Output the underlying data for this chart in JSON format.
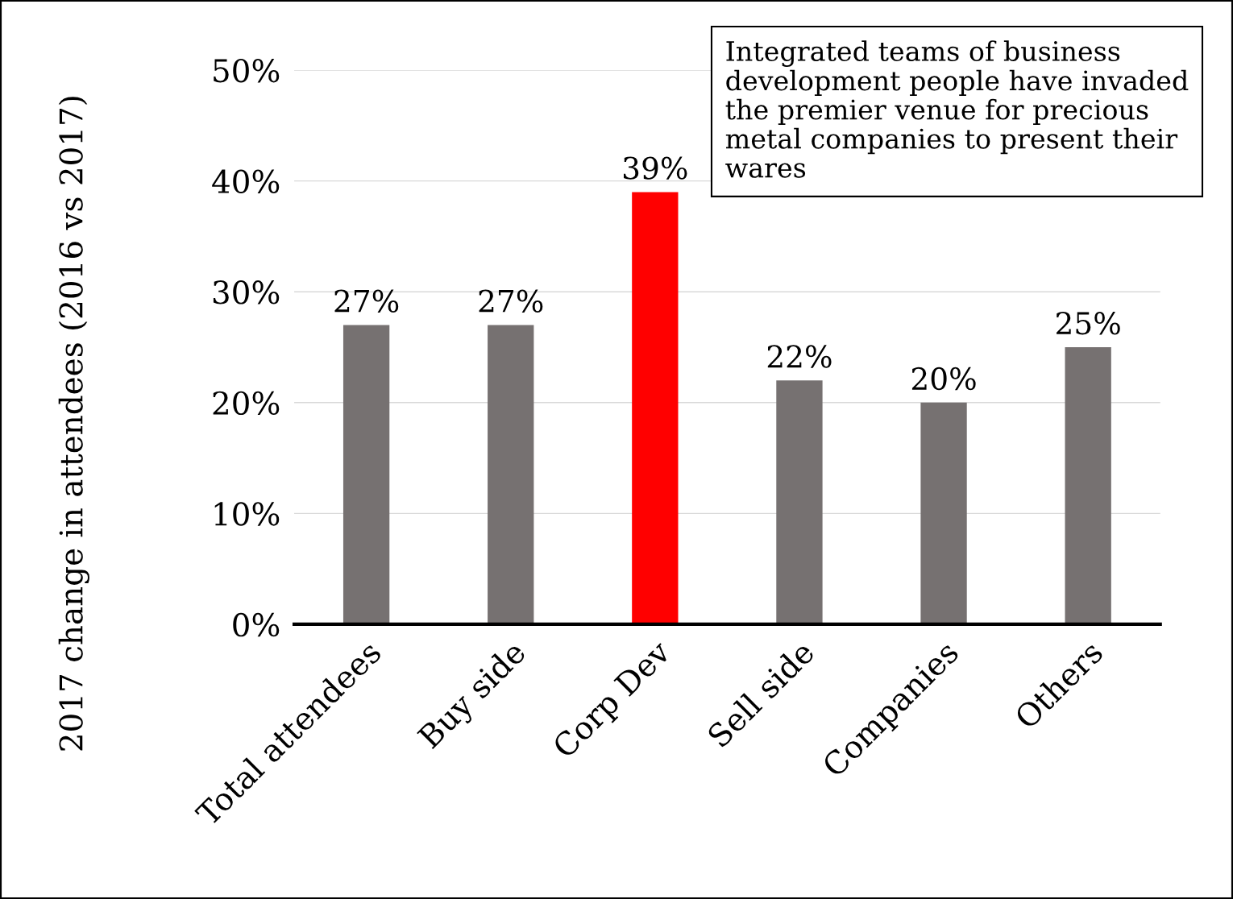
{
  "chart_data": {
    "type": "bar",
    "ylabel": "2017 change in attendees (2016 vs 2017)",
    "categories": [
      "Total attendees",
      "Buy side",
      "Corp Dev",
      "Sell side",
      "Companies",
      "Others"
    ],
    "values": [
      27,
      27,
      39,
      22,
      20,
      25
    ],
    "colors": [
      "#767171",
      "#767171",
      "#ff0000",
      "#767171",
      "#767171",
      "#767171"
    ],
    "data_labels": true,
    "value_labels": [
      "27%",
      "27%",
      "39%",
      "22%",
      "20%",
      "25%"
    ],
    "ylim": [
      0,
      50
    ],
    "yticks": [
      {
        "value": 0,
        "label": "0%"
      },
      {
        "value": 10,
        "label": "10%"
      },
      {
        "value": 20,
        "label": "20%"
      },
      {
        "value": 30,
        "label": "30%"
      },
      {
        "value": 40,
        "label": "40%"
      },
      {
        "value": 50,
        "label": "50%"
      }
    ],
    "grid": "y",
    "annotations": [
      "Integrated teams of business development people have invaded the premier venue for precious metal companies to present their wares"
    ]
  }
}
